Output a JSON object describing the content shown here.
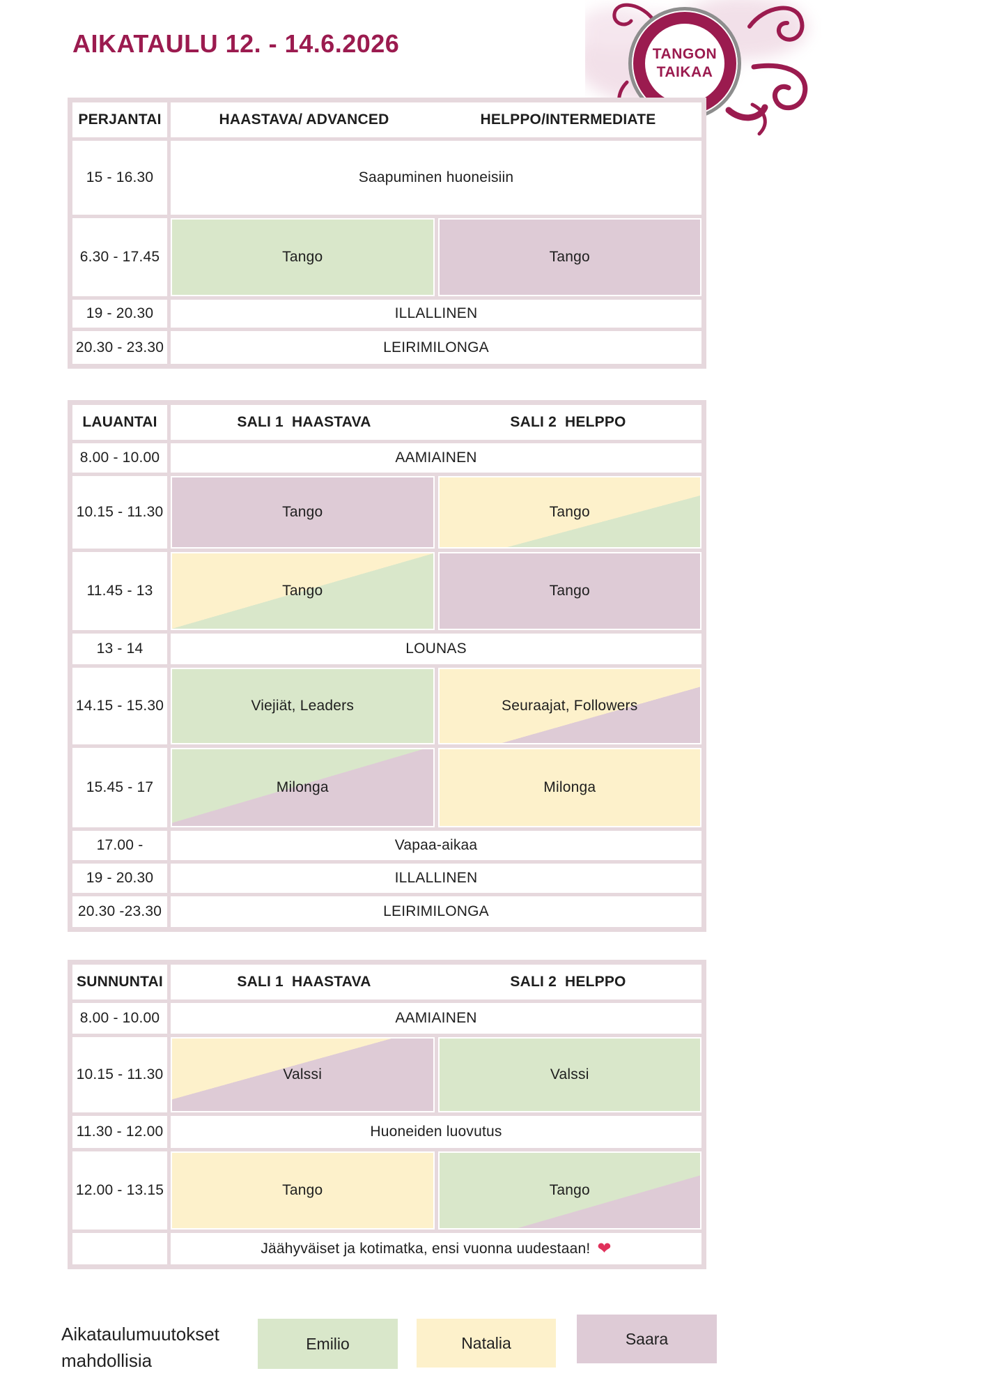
{
  "page": {
    "title": "AIKATAULU 12. - 14.6.2026"
  },
  "logo": {
    "line1": "TANGON",
    "line2": "TAIKAA"
  },
  "colors": {
    "accent": "#9B1B4F",
    "ring_gray": "#8D8D8D",
    "frame": "#E6D8DD",
    "emilio": "#D9E7CA",
    "natalia": "#FDF1CB",
    "saara": "#DECBD6",
    "heart": "#E0315B"
  },
  "tables": [
    {
      "id": "friday",
      "day": "PERJANTAI",
      "col1": "HAASTAVA/ ADVANCED",
      "col2": "HELPPO/INTERMEDIATE",
      "rows": [
        {
          "time": "15 - 16.30",
          "merged": "Saapuminen huoneisiin"
        },
        {
          "time": "6.30 - 17.45",
          "left": {
            "text": "Tango",
            "bg": "emilio"
          },
          "right": {
            "text": "Tango",
            "bg": "saara"
          }
        },
        {
          "time": "19 - 20.30",
          "merged": "ILLALLINEN"
        },
        {
          "time": "20.30 - 23.30",
          "merged": "LEIRIMILONGA"
        }
      ]
    },
    {
      "id": "saturday",
      "day": "LAUANTAI",
      "col1": "SALI 1  HAASTAVA",
      "col2": "SALI 2  HELPPO",
      "rows": [
        {
          "time": "8.00 - 10.00",
          "merged": "AAMIAINEN"
        },
        {
          "time": "10.15 - 11.30",
          "left": {
            "text": "Tango",
            "bg": "saara"
          },
          "right": {
            "text": "Tango",
            "bg": "natalia",
            "bg2": "emilio",
            "split": 63
          }
        },
        {
          "time": "11.45 - 13",
          "left": {
            "text": "Tango",
            "bg": "natalia",
            "bg2": "emilio",
            "split": 50
          },
          "right": {
            "text": "Tango",
            "bg": "saara"
          }
        },
        {
          "time": "13 - 14",
          "merged": "LOUNAS"
        },
        {
          "time": "14.15 - 15.30",
          "left": {
            "text": "Viejiät, Leaders",
            "bg": "emilio"
          },
          "right": {
            "text": "Seuraajat, Followers",
            "bg": "natalia",
            "bg2": "saara",
            "split": 62
          }
        },
        {
          "time": "15.45 - 17",
          "left": {
            "text": "Milonga",
            "bg": "emilio",
            "bg2": "saara",
            "split": 48
          },
          "right": {
            "text": "Milonga",
            "bg": "natalia"
          }
        },
        {
          "time": "17.00 -",
          "merged": "Vapaa-aikaa"
        },
        {
          "time": "19 - 20.30",
          "merged": "ILLALLINEN"
        },
        {
          "time": "20.30 -23.30",
          "merged": "LEIRIMILONGA"
        }
      ]
    },
    {
      "id": "sunday",
      "day": "SUNNUNTAI",
      "col1": "SALI 1  HAASTAVA",
      "col2": "SALI 2  HELPPO",
      "rows": [
        {
          "time": "8.00 - 10.00",
          "merged": "AAMIAINEN"
        },
        {
          "time": "10.15 - 11.30",
          "left": {
            "text": "Valssi",
            "bg": "natalia",
            "bg2": "saara",
            "split": 42
          },
          "right": {
            "text": "Valssi",
            "bg": "emilio"
          }
        },
        {
          "time": "11.30 - 12.00",
          "merged": "Huoneiden luovutus"
        },
        {
          "time": "12.00 - 13.15",
          "left": {
            "text": "Tango",
            "bg": "natalia"
          },
          "right": {
            "text": "Tango",
            "bg": "emilio",
            "bg2": "saara",
            "split": 65
          }
        },
        {
          "time": "",
          "merged": "Jäähyväiset ja kotimatka, ensi vuonna uudestaan!",
          "heart": true
        }
      ]
    }
  ],
  "footer": {
    "note_line1": "Aikataulumuutokset",
    "note_line2": "mahdollisia",
    "legend": [
      {
        "label": "Emilio",
        "color": "emilio"
      },
      {
        "label": "Natalia",
        "color": "natalia"
      },
      {
        "label": "Saara",
        "color": "saara"
      }
    ]
  }
}
